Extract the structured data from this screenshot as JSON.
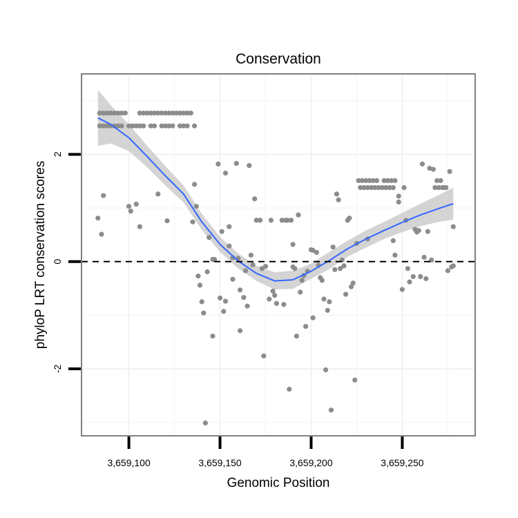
{
  "chart_data": {
    "type": "scatter",
    "title": "Conservation",
    "xlabel": "Genomic Position",
    "ylabel": "phyloP LRT conservation scores",
    "xlim": [
      3659074,
      3659290
    ],
    "ylim": [
      -3.25,
      3.5
    ],
    "x_ticks": [
      {
        "value": 3659100,
        "label": "3,659,100"
      },
      {
        "value": 3659150,
        "label": "3,659,150"
      },
      {
        "value": 3659200,
        "label": "3,659,200"
      },
      {
        "value": 3659250,
        "label": "3,659,250"
      }
    ],
    "y_ticks": [
      {
        "value": -2,
        "label": "-2"
      },
      {
        "value": 0,
        "label": "0"
      },
      {
        "value": 2,
        "label": "2"
      }
    ],
    "grid": true,
    "reference_line": {
      "y": 0,
      "style": "dashed",
      "color": "#000000"
    },
    "colors": {
      "points": "#8c8c8c",
      "smooth": "#3366ff",
      "band": "#cccccc",
      "panel_border": "#808080",
      "grid": "#f2f2f2"
    },
    "points": [
      [
        3659084,
        2.77
      ],
      [
        3659086,
        2.77
      ],
      [
        3659088,
        2.77
      ],
      [
        3659090,
        2.77
      ],
      [
        3659092,
        2.77
      ],
      [
        3659094,
        2.77
      ],
      [
        3659096,
        2.77
      ],
      [
        3659098,
        2.77
      ],
      [
        3659084,
        2.53
      ],
      [
        3659086,
        2.53
      ],
      [
        3659088,
        2.53
      ],
      [
        3659090,
        2.53
      ],
      [
        3659092,
        2.53
      ],
      [
        3659094,
        2.53
      ],
      [
        3659096,
        2.53
      ],
      [
        3659100,
        2.53
      ],
      [
        3659102,
        2.53
      ],
      [
        3659104,
        2.53
      ],
      [
        3659106,
        2.53
      ],
      [
        3659108,
        2.53
      ],
      [
        3659106,
        2.77
      ],
      [
        3659108,
        2.77
      ],
      [
        3659110,
        2.77
      ],
      [
        3659112,
        2.77
      ],
      [
        3659114,
        2.77
      ],
      [
        3659116,
        2.77
      ],
      [
        3659118,
        2.77
      ],
      [
        3659120,
        2.77
      ],
      [
        3659122,
        2.77
      ],
      [
        3659124,
        2.77
      ],
      [
        3659126,
        2.77
      ],
      [
        3659128,
        2.77
      ],
      [
        3659130,
        2.77
      ],
      [
        3659132,
        2.77
      ],
      [
        3659134,
        2.77
      ],
      [
        3659112,
        2.53
      ],
      [
        3659114,
        2.53
      ],
      [
        3659118,
        2.53
      ],
      [
        3659120,
        2.53
      ],
      [
        3659122,
        2.53
      ],
      [
        3659124,
        2.53
      ],
      [
        3659128,
        2.53
      ],
      [
        3659130,
        2.53
      ],
      [
        3659132,
        2.53
      ],
      [
        3659136,
        2.53
      ],
      [
        3659083,
        0.81
      ],
      [
        3659085,
        0.51
      ],
      [
        3659086,
        1.23
      ],
      [
        3659100,
        1.03
      ],
      [
        3659101,
        0.94
      ],
      [
        3659104,
        1.07
      ],
      [
        3659106,
        0.65
      ],
      [
        3659116,
        1.26
      ],
      [
        3659121,
        0.76
      ],
      [
        3659135,
        0.74
      ],
      [
        3659136,
        1.44
      ],
      [
        3659137,
        1.03
      ],
      [
        3659138,
        -0.27
      ],
      [
        3659139,
        -0.44
      ],
      [
        3659140,
        -0.75
      ],
      [
        3659141,
        -0.96
      ],
      [
        3659142,
        -3.01
      ],
      [
        3659143,
        -0.19
      ],
      [
        3659144,
        0.45
      ],
      [
        3659146,
        -1.39
      ],
      [
        3659146,
        0.04
      ],
      [
        3659147,
        0.04
      ],
      [
        3659149,
        1.82
      ],
      [
        3659150,
        -0.68
      ],
      [
        3659151,
        0.56
      ],
      [
        3659152,
        -0.93
      ],
      [
        3659153,
        -0.74
      ],
      [
        3659153,
        1.65
      ],
      [
        3659155,
        0.65
      ],
      [
        3659155,
        0.29
      ],
      [
        3659157,
        -0.33
      ],
      [
        3659157,
        0.07
      ],
      [
        3659159,
        1.83
      ],
      [
        3659160,
        0.06
      ],
      [
        3659161,
        -1.29
      ],
      [
        3659161,
        -0.53
      ],
      [
        3659163,
        -0.67
      ],
      [
        3659164,
        -0.17
      ],
      [
        3659165,
        -0.83
      ],
      [
        3659166,
        1.79
      ],
      [
        3659167,
        0.12
      ],
      [
        3659168,
        -0.06
      ],
      [
        3659169,
        1.17
      ],
      [
        3659170,
        0.77
      ],
      [
        3659172,
        0.77
      ],
      [
        3659173,
        -0.13
      ],
      [
        3659174,
        -1.76
      ],
      [
        3659175,
        -0.09
      ],
      [
        3659177,
        -0.7
      ],
      [
        3659178,
        0.77
      ],
      [
        3659179,
        -0.55
      ],
      [
        3659180,
        -0.63
      ],
      [
        3659181,
        -0.78
      ],
      [
        3659184,
        0.77
      ],
      [
        3659185,
        -0.8
      ],
      [
        3659186,
        0.77
      ],
      [
        3659187,
        0.77
      ],
      [
        3659188,
        -2.38
      ],
      [
        3659189,
        0.77
      ],
      [
        3659190,
        0.32
      ],
      [
        3659190,
        -0.1
      ],
      [
        3659191,
        -0.13
      ],
      [
        3659192,
        -1.39
      ],
      [
        3659193,
        0.87
      ],
      [
        3659194,
        -0.57
      ],
      [
        3659195,
        -0.35
      ],
      [
        3659196,
        -0.26
      ],
      [
        3659197,
        -1.21
      ],
      [
        3659198,
        -0.18
      ],
      [
        3659200,
        0.22
      ],
      [
        3659201,
        -1.05
      ],
      [
        3659201,
        0.21
      ],
      [
        3659203,
        0.17
      ],
      [
        3659204,
        -0.07
      ],
      [
        3659205,
        -0.3
      ],
      [
        3659206,
        -0.35
      ],
      [
        3659207,
        -0.7
      ],
      [
        3659208,
        -2.02
      ],
      [
        3659209,
        -0.91
      ],
      [
        3659210,
        -0.75
      ],
      [
        3659211,
        -2.77
      ],
      [
        3659212,
        0.27
      ],
      [
        3659213,
        -0.15
      ],
      [
        3659214,
        1.26
      ],
      [
        3659215,
        1.15
      ],
      [
        3659216,
        -0.13
      ],
      [
        3659217,
        0.03
      ],
      [
        3659218,
        -0.08
      ],
      [
        3659219,
        -0.61
      ],
      [
        3659220,
        0.77
      ],
      [
        3659221,
        0.81
      ],
      [
        3659222,
        -0.47
      ],
      [
        3659223,
        -0.4
      ],
      [
        3659224,
        -2.21
      ],
      [
        3659225,
        0.34
      ],
      [
        3659226,
        1.51
      ],
      [
        3659228,
        1.51
      ],
      [
        3659230,
        1.51
      ],
      [
        3659232,
        1.51
      ],
      [
        3659234,
        1.51
      ],
      [
        3659236,
        1.51
      ],
      [
        3659240,
        1.51
      ],
      [
        3659242,
        1.51
      ],
      [
        3659244,
        1.51
      ],
      [
        3659246,
        1.51
      ],
      [
        3659227,
        1.38
      ],
      [
        3659229,
        1.38
      ],
      [
        3659231,
        1.38
      ],
      [
        3659233,
        1.38
      ],
      [
        3659235,
        1.38
      ],
      [
        3659237,
        1.38
      ],
      [
        3659239,
        1.38
      ],
      [
        3659241,
        1.38
      ],
      [
        3659243,
        1.38
      ],
      [
        3659245,
        1.38
      ],
      [
        3659231,
        0.42
      ],
      [
        3659245,
        0.39
      ],
      [
        3659246,
        0.12
      ],
      [
        3659248,
        1.22
      ],
      [
        3659248,
        1.11
      ],
      [
        3659250,
        -0.52
      ],
      [
        3659251,
        1.38
      ],
      [
        3659252,
        0.77
      ],
      [
        3659253,
        -0.13
      ],
      [
        3659254,
        -0.38
      ],
      [
        3659256,
        -0.28
      ],
      [
        3659257,
        0.6
      ],
      [
        3659258,
        0.55
      ],
      [
        3659259,
        0.58
      ],
      [
        3659260,
        -0.28
      ],
      [
        3659261,
        1.82
      ],
      [
        3659262,
        0.08
      ],
      [
        3659263,
        -0.32
      ],
      [
        3659264,
        0.56
      ],
      [
        3659265,
        1.74
      ],
      [
        3659266,
        0.03
      ],
      [
        3659267,
        1.72
      ],
      [
        3659268,
        1.38
      ],
      [
        3659269,
        1.51
      ],
      [
        3659270,
        1.38
      ],
      [
        3659271,
        1.51
      ],
      [
        3659272,
        1.38
      ],
      [
        3659273,
        1.38
      ],
      [
        3659274,
        1.38
      ],
      [
        3659275,
        -0.17
      ],
      [
        3659276,
        1.68
      ],
      [
        3659277,
        -0.1
      ],
      [
        3659278,
        0.65
      ],
      [
        3659278,
        -0.08
      ]
    ],
    "smooth": [
      [
        3659083,
        2.68
      ],
      [
        3659090,
        2.56
      ],
      [
        3659100,
        2.31
      ],
      [
        3659110,
        1.96
      ],
      [
        3659120,
        1.6
      ],
      [
        3659130,
        1.26
      ],
      [
        3659140,
        0.74
      ],
      [
        3659150,
        0.32
      ],
      [
        3659160,
        0.01
      ],
      [
        3659170,
        -0.22
      ],
      [
        3659180,
        -0.36
      ],
      [
        3659190,
        -0.34
      ],
      [
        3659200,
        -0.18
      ],
      [
        3659210,
        0.02
      ],
      [
        3659220,
        0.24
      ],
      [
        3659230,
        0.42
      ],
      [
        3659240,
        0.58
      ],
      [
        3659250,
        0.73
      ],
      [
        3659260,
        0.87
      ],
      [
        3659270,
        0.99
      ],
      [
        3659278,
        1.08
      ]
    ],
    "band_upper": [
      [
        3659083,
        3.2
      ],
      [
        3659090,
        2.92
      ],
      [
        3659100,
        2.56
      ],
      [
        3659110,
        2.16
      ],
      [
        3659120,
        1.78
      ],
      [
        3659130,
        1.42
      ],
      [
        3659140,
        0.89
      ],
      [
        3659150,
        0.46
      ],
      [
        3659160,
        0.15
      ],
      [
        3659170,
        -0.08
      ],
      [
        3659180,
        -0.2
      ],
      [
        3659190,
        -0.17
      ],
      [
        3659200,
        -0.04
      ],
      [
        3659210,
        0.18
      ],
      [
        3659220,
        0.39
      ],
      [
        3659230,
        0.58
      ],
      [
        3659240,
        0.74
      ],
      [
        3659250,
        0.91
      ],
      [
        3659260,
        1.08
      ],
      [
        3659270,
        1.24
      ],
      [
        3659278,
        1.38
      ]
    ],
    "band_lower": [
      [
        3659083,
        2.16
      ],
      [
        3659090,
        2.2
      ],
      [
        3659100,
        2.06
      ],
      [
        3659110,
        1.76
      ],
      [
        3659120,
        1.42
      ],
      [
        3659130,
        1.1
      ],
      [
        3659140,
        0.59
      ],
      [
        3659150,
        0.18
      ],
      [
        3659160,
        -0.13
      ],
      [
        3659170,
        -0.36
      ],
      [
        3659180,
        -0.52
      ],
      [
        3659190,
        -0.51
      ],
      [
        3659200,
        -0.32
      ],
      [
        3659210,
        -0.14
      ],
      [
        3659220,
        0.09
      ],
      [
        3659230,
        0.26
      ],
      [
        3659240,
        0.42
      ],
      [
        3659250,
        0.55
      ],
      [
        3659260,
        0.66
      ],
      [
        3659270,
        0.74
      ],
      [
        3659278,
        0.78
      ]
    ]
  }
}
